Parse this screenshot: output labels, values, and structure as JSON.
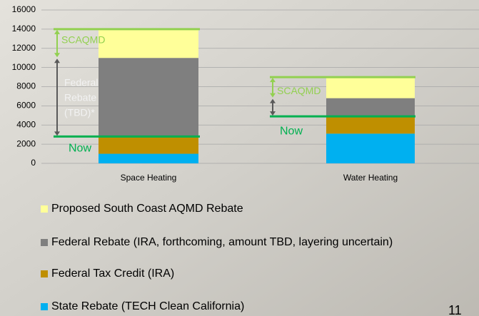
{
  "chart_data": {
    "type": "stacked_bar",
    "categories": [
      "Space Heating",
      "Water Heating"
    ],
    "series": [
      {
        "name": "State Rebate (TECH Clean California)",
        "color": "#00b0f0",
        "values": [
          1000,
          3100
        ]
      },
      {
        "name": "Federal Tax Credit (IRA)",
        "color": "#bf8f00",
        "values": [
          1800,
          1800
        ]
      },
      {
        "name": "Federal Rebate (IRA, forthcoming, amount TBD, layering uncertain)",
        "color": "#7f7f7f",
        "values": [
          8200,
          1900
        ]
      },
      {
        "name": "Proposed South Coast AQMD Rebate",
        "color": "#ffff99",
        "values": [
          3000,
          2200
        ]
      }
    ],
    "ylim": [
      0,
      16000
    ],
    "yticks": [
      0,
      2000,
      4000,
      6000,
      8000,
      10000,
      12000,
      14000,
      16000
    ],
    "grid": true,
    "annotations": [
      "SCAQMD",
      "Federal",
      "Rebate",
      "(TBD)*",
      "Now",
      "SCAQMD",
      "Now"
    ]
  },
  "page_number": "11"
}
